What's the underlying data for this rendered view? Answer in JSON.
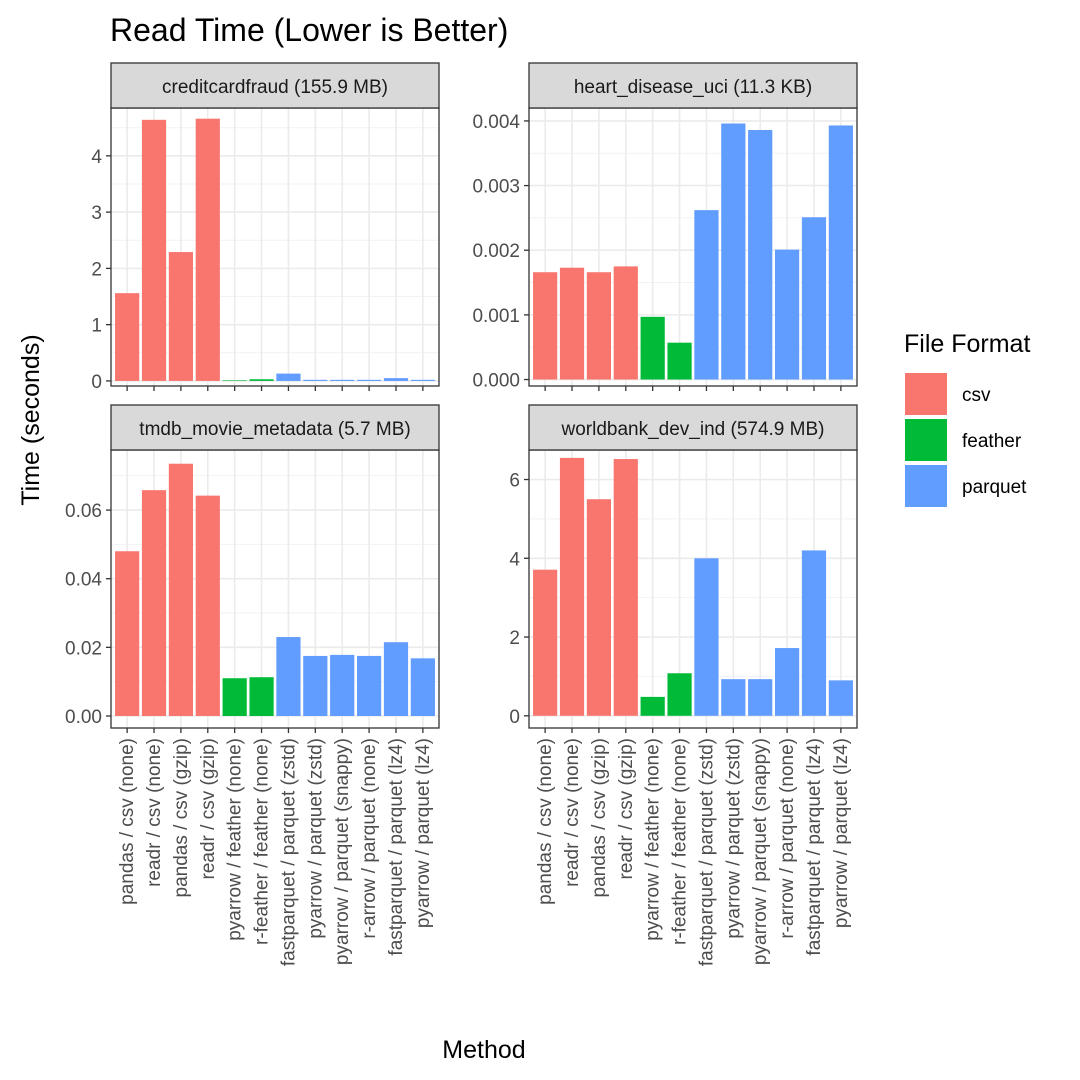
{
  "chart_data": {
    "type": "bar",
    "title": "Read Time (Lower is Better)",
    "xlabel": "Method",
    "ylabel": "Time (seconds)",
    "grid": true,
    "legend": {
      "title": "File Format",
      "placement": "right",
      "entries": [
        {
          "name": "csv",
          "color": "#F8766D"
        },
        {
          "name": "feather",
          "color": "#00BA38"
        },
        {
          "name": "parquet",
          "color": "#619CFF"
        }
      ]
    },
    "categories": [
      "pandas / csv (none)",
      "readr / csv (none)",
      "pandas / csv (gzip)",
      "readr / csv (gzip)",
      "pyarrow / feather (none)",
      "r-feather / feather (none)",
      "fastparquet / parquet (zstd)",
      "pyarrow / parquet (zstd)",
      "pyarrow / parquet (snappy)",
      "r-arrow / parquet (none)",
      "fastparquet / parquet (lz4)",
      "pyarrow / parquet (lz4)"
    ],
    "formats": [
      "csv",
      "csv",
      "csv",
      "csv",
      "feather",
      "feather",
      "parquet",
      "parquet",
      "parquet",
      "parquet",
      "parquet",
      "parquet"
    ],
    "panels": [
      {
        "strip": "creditcardfraud (155.9 MB)",
        "ylim": [
          -0.09,
          4.85
        ],
        "yticks": [
          0,
          1,
          2,
          3,
          4
        ],
        "yticklabels": [
          "0",
          "1",
          "2",
          "3",
          "4"
        ],
        "values": [
          1.56,
          4.64,
          2.29,
          4.66,
          0.01,
          0.03,
          0.13,
          0.02,
          0.02,
          0.02,
          0.05,
          0.02
        ]
      },
      {
        "strip": "heart_disease_uci (11.3 KB)",
        "ylim": [
          -0.0001,
          0.0042
        ],
        "yticks": [
          0,
          0.001,
          0.002,
          0.003,
          0.004
        ],
        "yticklabels": [
          "0.000",
          "0.001",
          "0.002",
          "0.003",
          "0.004"
        ],
        "values": [
          0.00166,
          0.00173,
          0.00166,
          0.00175,
          0.00097,
          0.00057,
          0.00262,
          0.00396,
          0.00386,
          0.00201,
          0.00251,
          0.00393
        ]
      },
      {
        "strip": "tmdb_movie_metadata (5.7 MB)",
        "ylim": [
          -0.0035,
          0.0775
        ],
        "yticks": [
          0,
          0.02,
          0.04,
          0.06
        ],
        "yticklabels": [
          "0.00",
          "0.02",
          "0.04",
          "0.06"
        ],
        "values": [
          0.048,
          0.0658,
          0.0735,
          0.0642,
          0.011,
          0.0113,
          0.023,
          0.0175,
          0.0178,
          0.0175,
          0.0215,
          0.0168
        ]
      },
      {
        "strip": "worldbank_dev_ind (574.9 MB)",
        "ylim": [
          -0.31,
          6.75
        ],
        "yticks": [
          0,
          2,
          4,
          6
        ],
        "yticklabels": [
          "0",
          "2",
          "4",
          "6"
        ],
        "values": [
          3.71,
          6.55,
          5.5,
          6.52,
          0.48,
          1.08,
          4.0,
          0.93,
          0.93,
          1.72,
          4.2,
          0.9
        ]
      }
    ]
  }
}
